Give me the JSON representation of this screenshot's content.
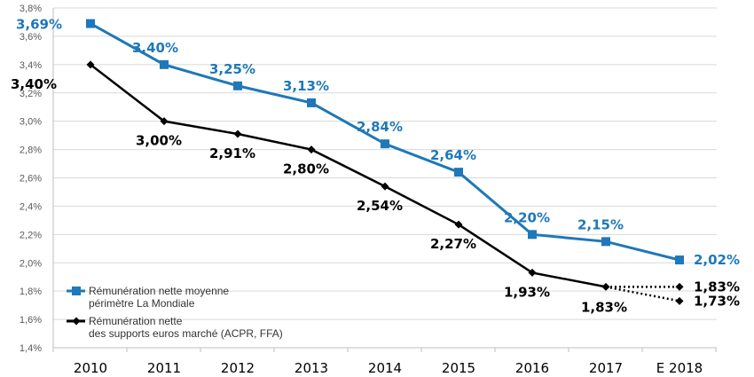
{
  "chart_data": {
    "type": "line",
    "title": "",
    "xlabel": "",
    "ylabel": "",
    "categories": [
      "2010",
      "2011",
      "2012",
      "2013",
      "2014",
      "2015",
      "2016",
      "2017",
      "E 2018"
    ],
    "ylim": [
      1.4,
      3.8
    ],
    "yticks": [
      "1,4%",
      "1,6%",
      "1,8%",
      "2,0%",
      "2,2%",
      "2,4%",
      "2,6%",
      "2,8%",
      "3,0%",
      "3,2%",
      "3,4%",
      "3,6%",
      "3,8%"
    ],
    "ytick_values": [
      1.4,
      1.6,
      1.8,
      2.0,
      2.2,
      2.4,
      2.6,
      2.8,
      3.0,
      3.2,
      3.4,
      3.6,
      3.8
    ],
    "grid": true,
    "legend_position": "bottom-left",
    "series": [
      {
        "name": "Rémunération nette moyenne périmètre La Mondiale",
        "legend_lines": [
          "Rémunération nette moyenne",
          "périmètre La Mondiale"
        ],
        "color": "#1e78b9",
        "marker": "square",
        "values": [
          3.69,
          3.4,
          3.25,
          3.13,
          2.84,
          2.64,
          2.2,
          2.15,
          2.02
        ],
        "labels": [
          "3,69%",
          "3,40%",
          "3,25%",
          "3,13%",
          "2,84%",
          "2,64%",
          "2,20%",
          "2,15%",
          "2,02%"
        ]
      },
      {
        "name": "Rémunération nette des supports euros marché (ACPR, FFA)",
        "legend_lines": [
          "Rémunération nette",
          "des supports euros marché (ACPR, FFA)"
        ],
        "color": "#000000",
        "marker": "diamond",
        "values": [
          3.4,
          3.0,
          2.91,
          2.8,
          2.54,
          2.27,
          1.93,
          1.83,
          null
        ],
        "labels": [
          "3,40%",
          "3,00%",
          "2,91%",
          "2,80%",
          "2,54%",
          "2,27%",
          "1,93%",
          "1,83%",
          ""
        ],
        "projections": [
          {
            "from": "2017",
            "to": "E 2018",
            "value": 1.83,
            "label": "1,83%",
            "style": "dotted"
          },
          {
            "from": "2017",
            "to": "E 2018",
            "value": 1.73,
            "label": "1,73%",
            "style": "dotted"
          }
        ]
      }
    ]
  }
}
